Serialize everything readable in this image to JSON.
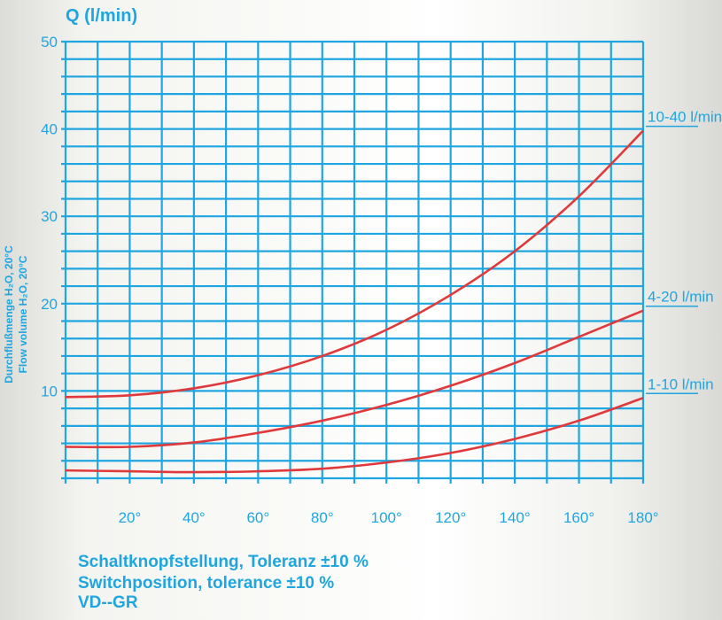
{
  "chart_data": {
    "type": "line",
    "title": "Q (l/min)",
    "ylabel_lines": [
      "Durchflußmenge H₂O, 20°C",
      "Flow volume H₂O, 20°C"
    ],
    "xlabel_lines": [
      "Schaltknopfstellung, Toleranz ±10 %",
      "Switchposition, tolerance ±10 %",
      "VD--GR"
    ],
    "xlim": [
      0,
      180
    ],
    "ylim": [
      0,
      50
    ],
    "x_ticks": [
      20,
      40,
      60,
      80,
      100,
      120,
      140,
      160,
      180
    ],
    "x_tick_labels": [
      "20°",
      "40°",
      "60°",
      "80°",
      "100°",
      "120°",
      "140°",
      "160°",
      "180°"
    ],
    "y_ticks": [
      10,
      20,
      30,
      40,
      50
    ],
    "grid": true,
    "line_color": "#e0393b",
    "grid_color": "#1fa6e0",
    "series": [
      {
        "name": "10-40 l/min",
        "x": [
          0,
          20,
          40,
          60,
          80,
          100,
          120,
          140,
          160,
          180
        ],
        "y": [
          9.3,
          9.5,
          10.3,
          11.8,
          14.0,
          17.0,
          21.0,
          26.0,
          32.3,
          39.8
        ]
      },
      {
        "name": "4-20 l/min",
        "x": [
          0,
          20,
          40,
          60,
          80,
          100,
          120,
          140,
          160,
          180
        ],
        "y": [
          3.6,
          3.6,
          4.1,
          5.2,
          6.6,
          8.4,
          10.6,
          13.2,
          16.2,
          19.2
        ]
      },
      {
        "name": "1-10 l/min",
        "x": [
          0,
          20,
          40,
          60,
          80,
          100,
          120,
          140,
          160,
          180
        ],
        "y": [
          0.9,
          0.8,
          0.7,
          0.8,
          1.1,
          1.8,
          2.9,
          4.5,
          6.6,
          9.2
        ]
      }
    ]
  }
}
